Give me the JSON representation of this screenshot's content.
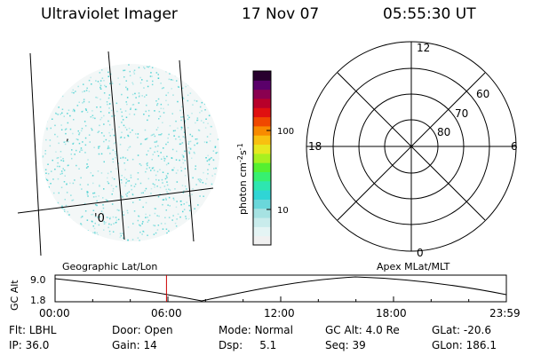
{
  "header": {
    "instrument": "Ultraviolet Imager",
    "date": "17 Nov 07",
    "time": "05:55:30 UT"
  },
  "image_panel": {
    "markers": [
      ",",
      "'0"
    ],
    "speck_color": "#33cccc"
  },
  "colorbar": {
    "unit_label": "photon cm",
    "unit_sup1": "-2",
    "unit_mid": "s",
    "unit_sup2": "-1",
    "ticks": [
      {
        "label": "100",
        "value": 100
      },
      {
        "label": "10",
        "value": 10
      }
    ],
    "colors": [
      "#f0f0f0",
      "#e4f4f4",
      "#c9ecec",
      "#a6e2e2",
      "#6ad7da",
      "#2fd5d5",
      "#2ee6b0",
      "#37f070",
      "#55f030",
      "#a8f020",
      "#e6e820",
      "#f8c010",
      "#f88a00",
      "#f04800",
      "#e01010",
      "#b8002a",
      "#8a0050",
      "#5a006a",
      "#28002e"
    ],
    "scale": "log"
  },
  "polar_plot": {
    "mlt_labels": {
      "top": "12",
      "left": "18",
      "right": "6",
      "bottom": "0"
    },
    "lat_labels": [
      "60",
      "70",
      "80"
    ],
    "coordinate_system": "Apex MLat/MLT"
  },
  "altitude_plot": {
    "left_title": "Geographic Lat/Lon",
    "right_title": "Apex MLat/MLT",
    "ylabel": "GC Alt",
    "yticks": [
      "9.0",
      "1.8"
    ],
    "xticks": [
      "00:00",
      "06:00",
      "12:00",
      "18:00",
      "23:59"
    ],
    "current_time_hours": 5.925,
    "line_color": "#000000",
    "marker_color": "#cc0000"
  },
  "status": {
    "row1": [
      {
        "key": "Flt:",
        "value": "LBHL"
      },
      {
        "key": "Door:",
        "value": "Open"
      },
      {
        "key": "Mode:",
        "value": "Normal"
      },
      {
        "key": "GC Alt:",
        "value": "4.0 Re"
      },
      {
        "key": "GLat:",
        "value": "-20.6"
      }
    ],
    "row2": [
      {
        "key": "IP:",
        "value": "36.0"
      },
      {
        "key": "Gain:",
        "value": "14"
      },
      {
        "key": "Dsp:",
        "value": "5.1"
      },
      {
        "key": "Seq:",
        "value": "39"
      },
      {
        "key": "GLon:",
        "value": "186.1"
      }
    ]
  }
}
